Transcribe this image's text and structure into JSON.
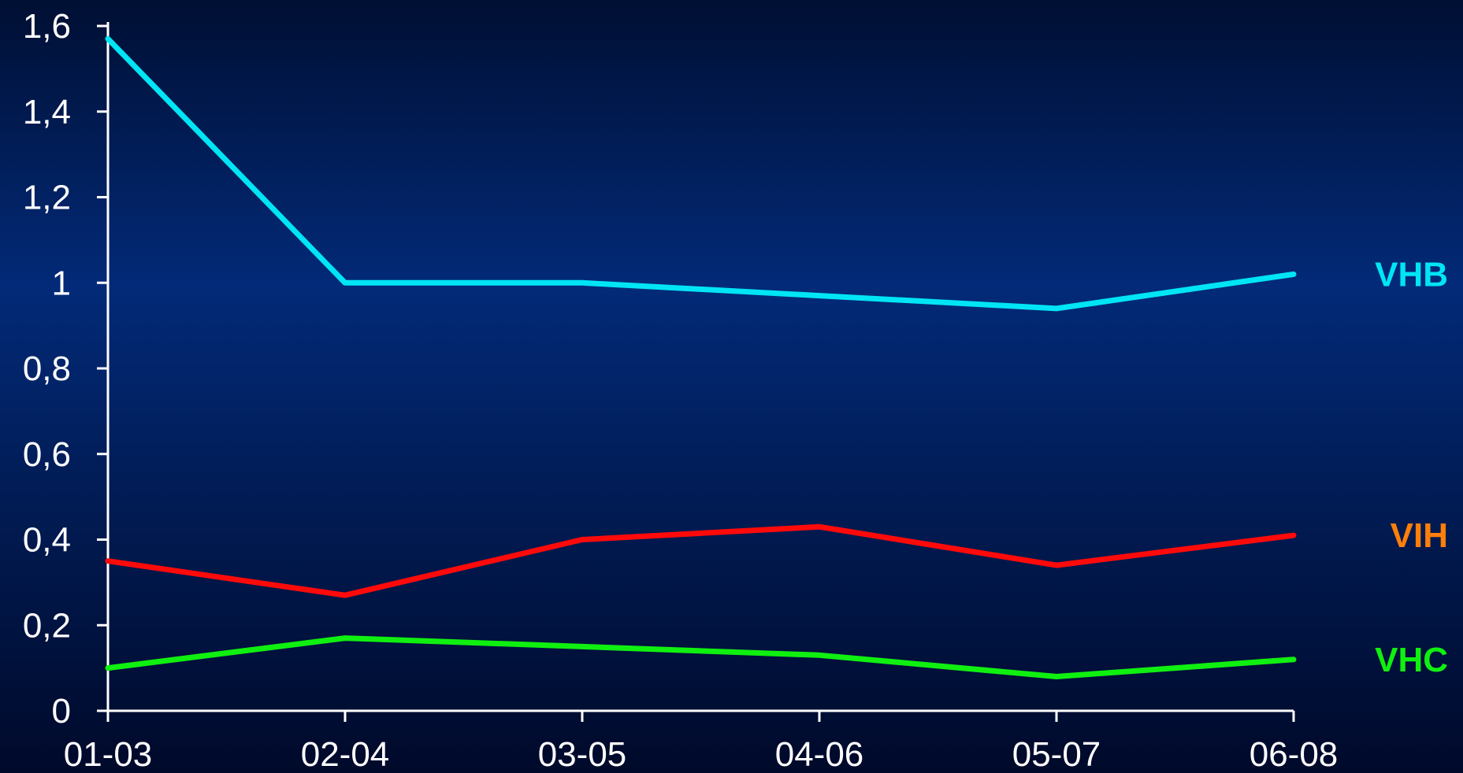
{
  "chart_data": {
    "type": "line",
    "categories": [
      "01-03",
      "02-04",
      "03-05",
      "04-06",
      "05-07",
      "06-08"
    ],
    "yticks": [
      "0",
      "0,2",
      "0,4",
      "0,6",
      "0,8",
      "1",
      "1,2",
      "1,4",
      "1,6"
    ],
    "ylim": [
      0,
      1.6
    ],
    "title": "",
    "xlabel": "",
    "ylabel": "",
    "grid": false,
    "series": [
      {
        "name": "VHB",
        "color": "#00e5f5",
        "label_color": "#00e5f5",
        "values": [
          1.57,
          1.0,
          1.0,
          0.97,
          0.94,
          1.02
        ]
      },
      {
        "name": "VIH",
        "color": "#ff0a0a",
        "label_color": "#ff7f0a",
        "values": [
          0.35,
          0.27,
          0.4,
          0.43,
          0.34,
          0.41
        ]
      },
      {
        "name": "VHC",
        "color": "#10f010",
        "label_color": "#10f010",
        "values": [
          0.1,
          0.17,
          0.15,
          0.13,
          0.08,
          0.12
        ]
      }
    ]
  }
}
